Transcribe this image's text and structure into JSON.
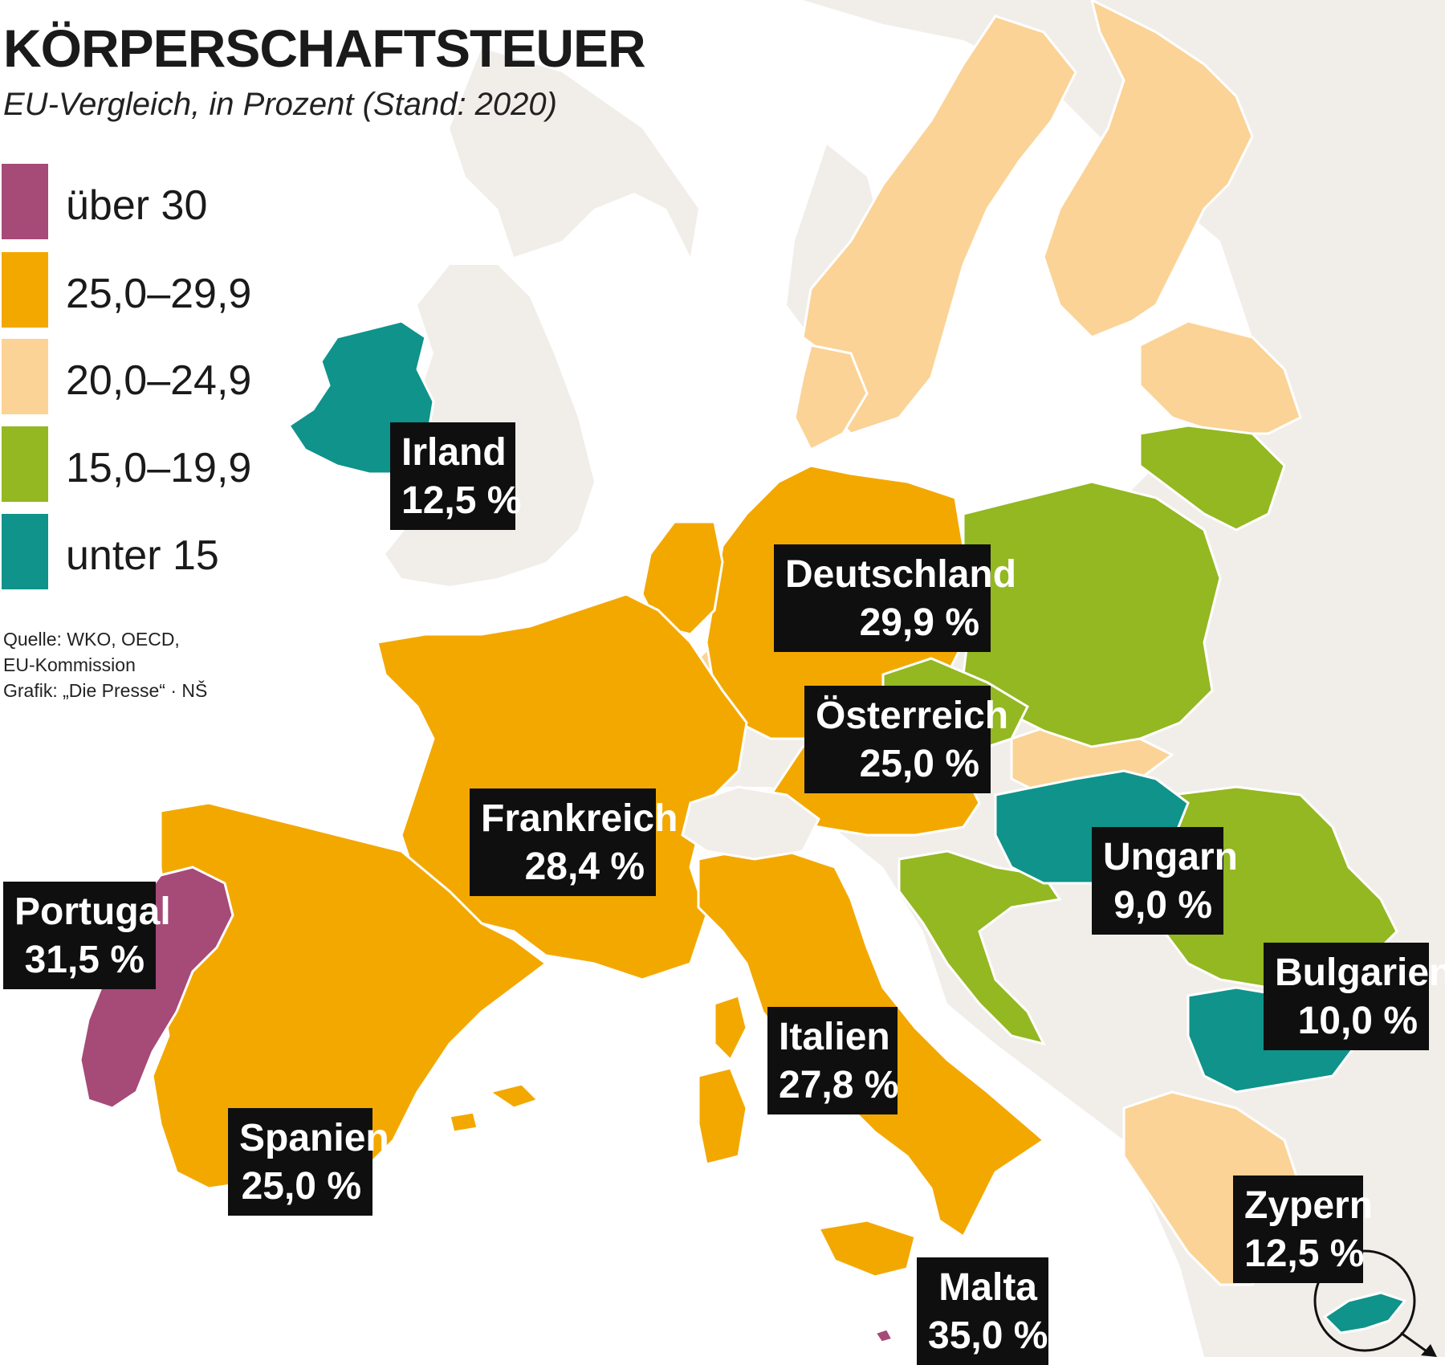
{
  "title": "KÖRPERSCHAFTSTEUER",
  "subtitle": "EU-Vergleich, in Prozent (Stand: 2020)",
  "legend": [
    {
      "label": "über 30",
      "color": "#a64a78"
    },
    {
      "label": "25,0–29,9",
      "color": "#f3a800"
    },
    {
      "label": "20,0–24,9",
      "color": "#fbd396"
    },
    {
      "label": "15,0–19,9",
      "color": "#93b821"
    },
    {
      "label": "unter 15",
      "color": "#0f938a"
    }
  ],
  "source": {
    "line1": "Quelle: WKO, OECD,",
    "line2": "EU-Kommission",
    "line3": "Grafik: „Die Presse“ · NŠ"
  },
  "colors": {
    "background_land": "#f1eeea",
    "over_30": "#a64a78",
    "range_25_29_9": "#f3a800",
    "range_20_24_9": "#fbd396",
    "range_15_19_9": "#93b821",
    "under_15": "#0f938a",
    "callout_bg": "#0f0f0f",
    "callout_text": "#ffffff"
  },
  "countries": [
    {
      "name": "Irland",
      "value": "12,5 %",
      "rate": 12.5,
      "category": "unter 15"
    },
    {
      "name": "Deutschland",
      "value": "29,9 %",
      "rate": 29.9,
      "category": "25,0–29,9"
    },
    {
      "name": "Österreich",
      "value": "25,0 %",
      "rate": 25.0,
      "category": "25,0–29,9"
    },
    {
      "name": "Frankreich",
      "value": "28,4 %",
      "rate": 28.4,
      "category": "25,0–29,9"
    },
    {
      "name": "Ungarn",
      "value": "9,0 %",
      "rate": 9.0,
      "category": "unter 15"
    },
    {
      "name": "Portugal",
      "value": "31,5 %",
      "rate": 31.5,
      "category": "über 30"
    },
    {
      "name": "Bulgarien",
      "value": "10,0 %",
      "rate": 10.0,
      "category": "unter 15"
    },
    {
      "name": "Italien",
      "value": "27,8 %",
      "rate": 27.8,
      "category": "25,0–29,9"
    },
    {
      "name": "Spanien",
      "value": "25,0 %",
      "rate": 25.0,
      "category": "25,0–29,9"
    },
    {
      "name": "Zypern",
      "value": "12,5 %",
      "rate": 12.5,
      "category": "unter 15"
    },
    {
      "name": "Malta",
      "value": "35,0 %",
      "rate": 35.0,
      "category": "über 30"
    }
  ]
}
